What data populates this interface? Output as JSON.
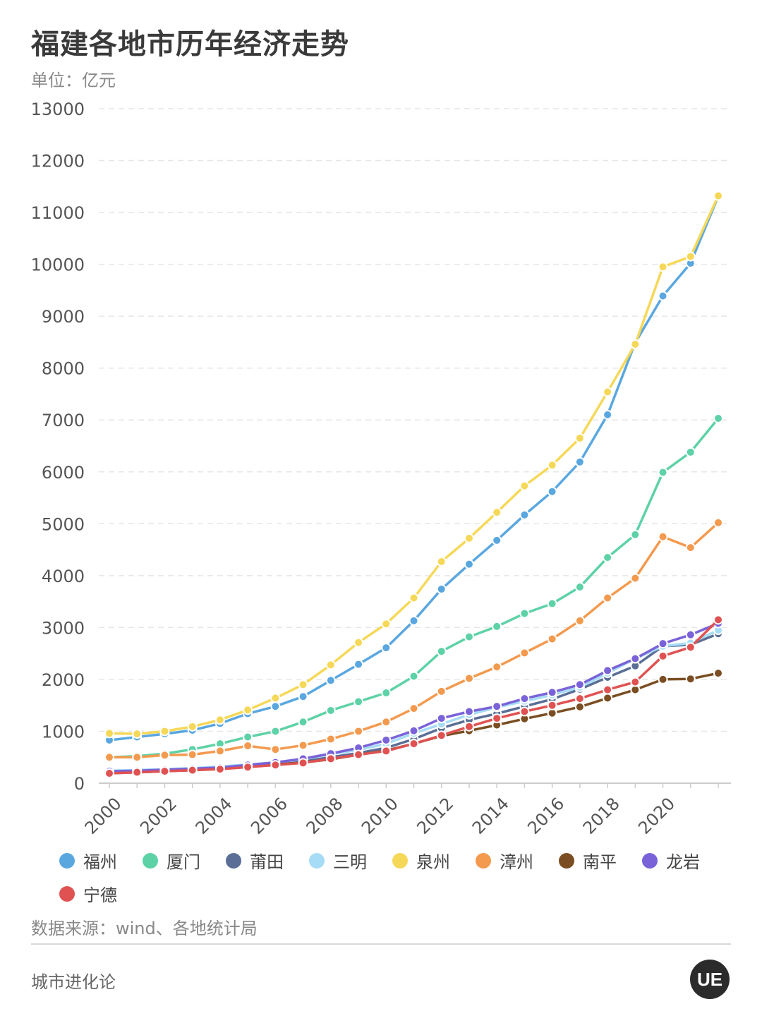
{
  "header": {
    "title": "福建各地市历年经济走势",
    "unit": "单位：亿元"
  },
  "footer": {
    "source": "数据来源：wind、各地统计局",
    "brand": "城市进化论",
    "logo_text": "UE"
  },
  "chart_data": {
    "type": "line",
    "title": "福建各地市历年经济走势",
    "ylabel": "单位：亿元",
    "xlabel": "",
    "ylim": [
      0,
      13000
    ],
    "yticks": [
      0,
      1000,
      2000,
      3000,
      4000,
      5000,
      6000,
      7000,
      8000,
      9000,
      10000,
      11000,
      12000,
      13000
    ],
    "xtick_labels": [
      "2000",
      "2002",
      "2004",
      "2006",
      "2008",
      "2010",
      "2012",
      "2014",
      "2016",
      "2018",
      "2020"
    ],
    "grid": "horizontal dashed",
    "legend_position": "bottom",
    "x": [
      2000,
      2001,
      2002,
      2003,
      2004,
      2005,
      2006,
      2007,
      2008,
      2009,
      2010,
      2011,
      2012,
      2013,
      2014,
      2015,
      2016,
      2017,
      2018,
      2019,
      2020,
      2021,
      2022
    ],
    "series": [
      {
        "name": "福州",
        "color": "#5aa7e0",
        "values": [
          830,
          890,
          950,
          1020,
          1150,
          1340,
          1480,
          1670,
          1980,
          2290,
          2610,
          3130,
          3740,
          4220,
          4680,
          5170,
          5620,
          6190,
          7100,
          8490,
          9390,
          10020,
          11310
        ]
      },
      {
        "name": "厦门",
        "color": "#5dd2a6",
        "values": [
          500,
          520,
          570,
          650,
          760,
          890,
          1000,
          1180,
          1400,
          1570,
          1740,
          2060,
          2540,
          2820,
          3020,
          3270,
          3460,
          3780,
          4350,
          4790,
          5990,
          6380,
          7030
        ]
      },
      {
        "name": "莆田",
        "color": "#5a6e96",
        "values": [
          190,
          210,
          230,
          250,
          280,
          320,
          370,
          420,
          500,
          580,
          680,
          850,
          1060,
          1220,
          1340,
          1480,
          1620,
          1810,
          2040,
          2260,
          2640,
          2670,
          2880
        ]
      },
      {
        "name": "三明",
        "color": "#a6dcf5",
        "values": [
          240,
          255,
          270,
          290,
          320,
          360,
          400,
          460,
          560,
          640,
          760,
          960,
          1140,
          1320,
          1460,
          1580,
          1700,
          1850,
          2120,
          2400,
          2640,
          2700,
          2950
        ]
      },
      {
        "name": "泉州",
        "color": "#f6d858",
        "values": [
          960,
          950,
          1000,
          1090,
          1220,
          1410,
          1640,
          1900,
          2280,
          2710,
          3070,
          3570,
          4270,
          4720,
          5220,
          5730,
          6130,
          6650,
          7540,
          8460,
          9950,
          10150,
          11320
        ]
      },
      {
        "name": "漳州",
        "color": "#f39a4f",
        "values": [
          500,
          500,
          540,
          550,
          620,
          720,
          650,
          730,
          850,
          1000,
          1180,
          1440,
          1770,
          2020,
          2240,
          2510,
          2780,
          3130,
          3570,
          3950,
          4750,
          4540,
          5020
        ]
      },
      {
        "name": "南平",
        "color": "#7a4e22",
        "values": [
          200,
          220,
          240,
          250,
          280,
          320,
          360,
          400,
          460,
          550,
          630,
          760,
          910,
          1010,
          1120,
          1240,
          1350,
          1470,
          1640,
          1800,
          2000,
          2010,
          2120
        ]
      },
      {
        "name": "龙岩",
        "color": "#7a62d8",
        "values": [
          230,
          240,
          260,
          280,
          300,
          350,
          400,
          470,
          570,
          680,
          830,
          1010,
          1250,
          1380,
          1480,
          1630,
          1750,
          1900,
          2170,
          2400,
          2690,
          2860,
          3080
        ]
      },
      {
        "name": "宁德",
        "color": "#e05252",
        "values": [
          190,
          210,
          230,
          250,
          270,
          310,
          350,
          390,
          470,
          550,
          620,
          760,
          920,
          1090,
          1250,
          1380,
          1500,
          1630,
          1800,
          1950,
          2450,
          2620,
          3150
        ]
      }
    ]
  }
}
